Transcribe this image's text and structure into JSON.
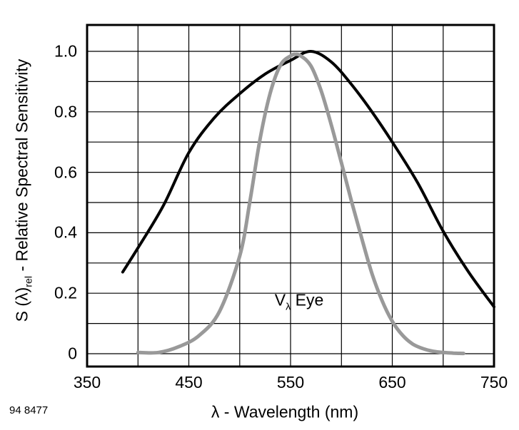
{
  "figure": {
    "figure_number": "94 8477"
  },
  "chart_data": {
    "type": "line",
    "title": "",
    "xlabel": "λ - Wavelength (nm)",
    "ylabel": {
      "prefix": "S (λ)",
      "sub": "rel",
      "suffix": " - Relative Spectral Sensitivity"
    },
    "annotation": {
      "prefix": "V",
      "sub": "λ",
      "suffix": " Eye"
    },
    "grid": true,
    "legend": "none",
    "x_axis": {
      "min": 350,
      "max": 750,
      "tick_values": [
        350,
        450,
        550,
        650,
        750
      ],
      "tick_labels": [
        "350",
        "450",
        "550",
        "650",
        "750"
      ],
      "gridline_values": [
        400,
        450,
        500,
        550,
        600,
        650,
        700
      ]
    },
    "y_axis": {
      "min": 0,
      "max": 1.0,
      "tick_values": [
        0,
        0.2,
        0.4,
        0.6,
        0.8,
        1.0
      ],
      "tick_labels": [
        "0",
        "0.2",
        "0.4",
        "0.6",
        "0.8",
        "1.0"
      ],
      "gridline_values": [
        0,
        0.1,
        0.2,
        0.3,
        0.4,
        0.5,
        0.6,
        0.7,
        0.8,
        0.9,
        1.0
      ]
    },
    "series": [
      {
        "id": "sensor",
        "name": "Detector relative spectral sensitivity",
        "color": "#000000",
        "width": 4,
        "points": [
          [
            385,
            0.27
          ],
          [
            400,
            0.35
          ],
          [
            425,
            0.49
          ],
          [
            450,
            0.665
          ],
          [
            475,
            0.78
          ],
          [
            500,
            0.86
          ],
          [
            525,
            0.925
          ],
          [
            550,
            0.97
          ],
          [
            570,
            1.0
          ],
          [
            590,
            0.965
          ],
          [
            610,
            0.89
          ],
          [
            630,
            0.8
          ],
          [
            650,
            0.7
          ],
          [
            675,
            0.565
          ],
          [
            700,
            0.405
          ],
          [
            725,
            0.27
          ],
          [
            750,
            0.155
          ]
        ]
      },
      {
        "id": "eye",
        "name": "V(λ) Eye",
        "color": "#999999",
        "width": 5,
        "points": [
          [
            400,
            0.004
          ],
          [
            420,
            0.004
          ],
          [
            440,
            0.023
          ],
          [
            460,
            0.06
          ],
          [
            480,
            0.139
          ],
          [
            500,
            0.323
          ],
          [
            510,
            0.503
          ],
          [
            520,
            0.71
          ],
          [
            530,
            0.862
          ],
          [
            540,
            0.954
          ],
          [
            550,
            0.985
          ],
          [
            555,
            0.99
          ],
          [
            560,
            0.985
          ],
          [
            570,
            0.952
          ],
          [
            580,
            0.87
          ],
          [
            590,
            0.757
          ],
          [
            600,
            0.631
          ],
          [
            610,
            0.503
          ],
          [
            620,
            0.381
          ],
          [
            630,
            0.265
          ],
          [
            640,
            0.175
          ],
          [
            650,
            0.107
          ],
          [
            660,
            0.061
          ],
          [
            670,
            0.032
          ],
          [
            680,
            0.017
          ],
          [
            690,
            0.008
          ],
          [
            700,
            0.004
          ],
          [
            710,
            0.002
          ],
          [
            720,
            0.001
          ]
        ]
      }
    ]
  }
}
